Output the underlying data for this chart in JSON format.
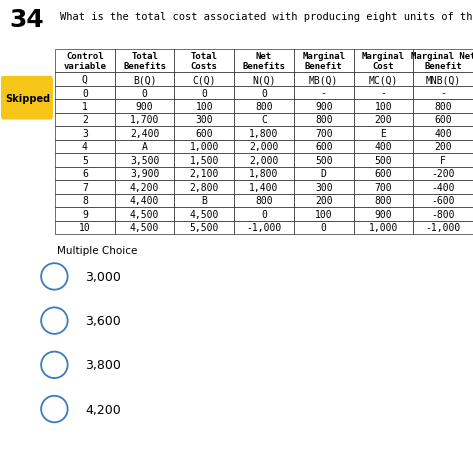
{
  "question_number": "34",
  "question_text": "What is the total cost associated with producing eight units of the control variable, Q (identify point B in the table)?",
  "badge_text": "Skipped",
  "badge_color": "#f5c518",
  "badge_text_color": "#000000",
  "table_headers_row1": [
    "Control\nvariable",
    "Total\nBenefits",
    "Total\nCosts",
    "Net\nBenefits",
    "Marginal\nBenefit",
    "Marginal\nCost",
    "Marginal Net\nBenefit"
  ],
  "table_headers_row2": [
    "Q",
    "B(Q)",
    "C(Q)",
    "N(Q)",
    "MB(Q)",
    "MC(Q)",
    "MNB(Q)"
  ],
  "table_data": [
    [
      "0",
      "0",
      "0",
      "0",
      "-",
      "-",
      "-"
    ],
    [
      "1",
      "900",
      "100",
      "800",
      "900",
      "100",
      "800"
    ],
    [
      "2",
      "1,700",
      "300",
      "C",
      "800",
      "200",
      "600"
    ],
    [
      "3",
      "2,400",
      "600",
      "1,800",
      "700",
      "E",
      "400"
    ],
    [
      "4",
      "A",
      "1,000",
      "2,000",
      "600",
      "400",
      "200"
    ],
    [
      "5",
      "3,500",
      "1,500",
      "2,000",
      "500",
      "500",
      "F"
    ],
    [
      "6",
      "3,900",
      "2,100",
      "1,800",
      "D",
      "600",
      "-200"
    ],
    [
      "7",
      "4,200",
      "2,800",
      "1,400",
      "300",
      "700",
      "-400"
    ],
    [
      "8",
      "4,400",
      "B",
      "800",
      "200",
      "800",
      "-600"
    ],
    [
      "9",
      "4,500",
      "4,500",
      "0",
      "100",
      "900",
      "-800"
    ],
    [
      "10",
      "4,500",
      "5,500",
      "-1,000",
      "0",
      "1,000",
      "-1,000"
    ]
  ],
  "multiple_choice_label": "Multiple Choice",
  "choices": [
    "3,000",
    "3,600",
    "3,800",
    "4,200"
  ],
  "bg_color": "#ffffff",
  "table_bg": "#ffffff",
  "choice_section_bg": "#efefef",
  "choice_row_bg": "#ffffff",
  "circle_color": "#3a7abf",
  "table_border_color": "#000000",
  "text_color": "#000000",
  "font_size_question": 7.5,
  "font_size_table_header": 6.5,
  "font_size_table_data": 7.0,
  "font_size_choices": 9.0,
  "font_size_mc_label": 7.5,
  "font_size_badge": 7.0,
  "font_size_number": 18
}
